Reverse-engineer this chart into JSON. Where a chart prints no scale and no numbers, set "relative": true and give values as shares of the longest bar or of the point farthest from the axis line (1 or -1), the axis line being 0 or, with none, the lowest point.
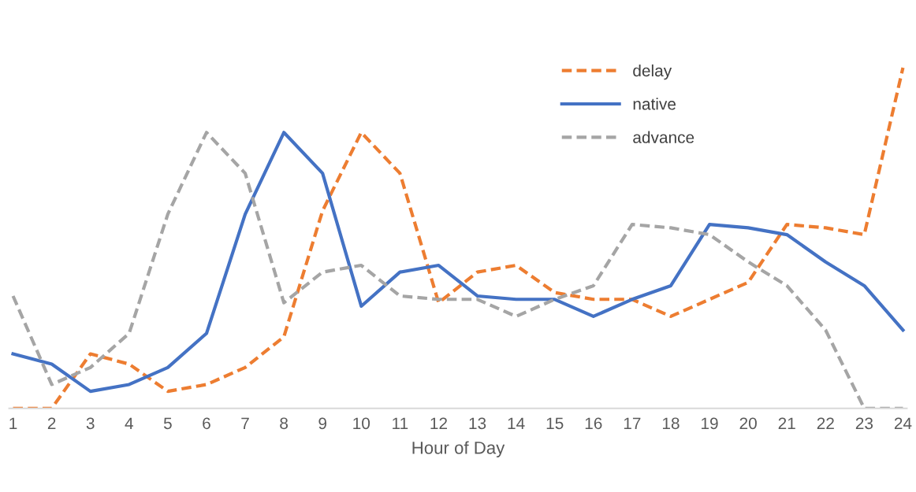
{
  "chart_data": {
    "type": "line",
    "relative": true,
    "xlabel": "Hour of Day",
    "legend": "top right",
    "marker": "none",
    "categories": [
      "1",
      "2",
      "3",
      "4",
      "5",
      "6",
      "7",
      "8",
      "9",
      "10",
      "11",
      "12",
      "13",
      "14",
      "15",
      "16",
      "17",
      "18",
      "19",
      "20",
      "21",
      "22",
      "23",
      "24"
    ],
    "series": [
      {
        "name": "delay",
        "color": "#ed7d31",
        "line_style": "dashed",
        "values": [
          0,
          0,
          0.16,
          0.13,
          0.05,
          0.07,
          0.12,
          0.21,
          0.58,
          0.81,
          0.69,
          0.31,
          0.4,
          0.42,
          0.34,
          0.32,
          0.32,
          0.27,
          0.32,
          0.37,
          0.54,
          0.53,
          0.51,
          1
        ]
      },
      {
        "name": "native",
        "color": "#4472c4",
        "line_style": "solid",
        "values": [
          0.16,
          0.13,
          0.05,
          0.07,
          0.12,
          0.22,
          0.57,
          0.81,
          0.69,
          0.3,
          0.4,
          0.42,
          0.33,
          0.32,
          0.32,
          0.27,
          0.32,
          0.36,
          0.54,
          0.53,
          0.51,
          0.43,
          0.36,
          0.23
        ]
      },
      {
        "name": "advance",
        "color": "#a5a5a5",
        "line_style": "dashed",
        "values": [
          0.33,
          0.07,
          0.12,
          0.22,
          0.57,
          0.81,
          0.69,
          0.31,
          0.4,
          0.42,
          0.33,
          0.32,
          0.32,
          0.27,
          0.32,
          0.36,
          0.54,
          0.53,
          0.51,
          0.43,
          0.36,
          0.23,
          0,
          0
        ]
      }
    ]
  }
}
